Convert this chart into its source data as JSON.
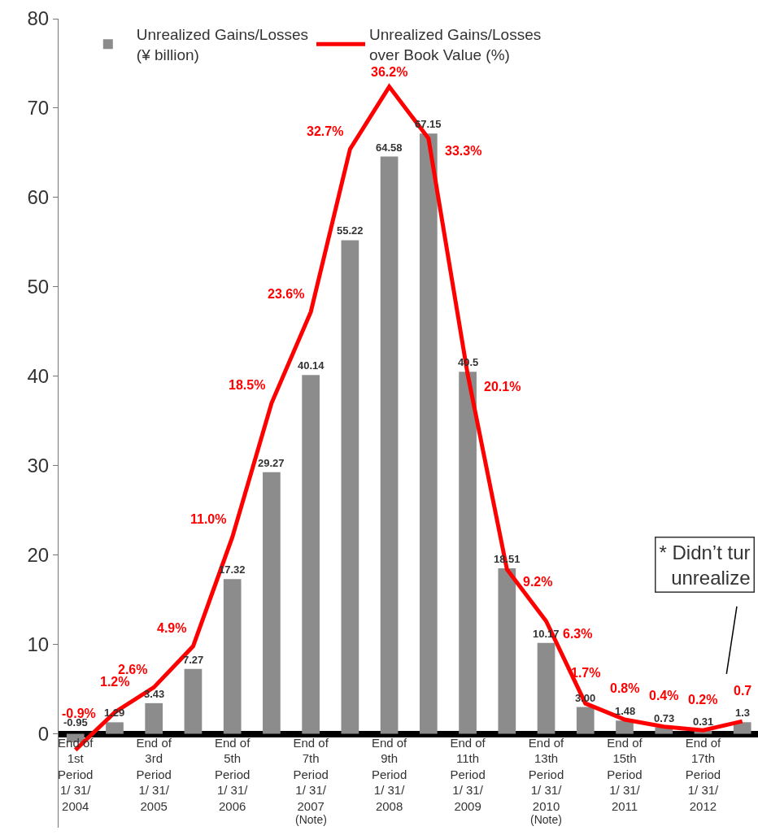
{
  "chart_data": {
    "type": "bar",
    "categories": [
      "End of\n1st\nPeriod\n1/ 31/\n2004",
      null,
      "End of\n3rd\nPeriod\n1/ 31/\n2005",
      null,
      "End of\n5th\nPeriod\n1/ 31/\n2006",
      null,
      "End of\n7th\nPeriod\n1/ 31/\n2007",
      null,
      "End of\n9th\nPeriod\n1/ 31/\n2008",
      null,
      "End of\n11th\nPeriod\n1/ 31/\n2009",
      null,
      "End of\n13th\nPeriod\n1/ 31/\n2010",
      null,
      "End of\n15th\nPeriod\n1/ 31/\n2011",
      null,
      "End of\n17th\nPeriod\n1/ 31/\n2012",
      null
    ],
    "series": [
      {
        "name": "Unrealized Gains/Losses\n(¥ billion)",
        "color": "#8c8c8c",
        "values": [
          -0.95,
          1.29,
          3.43,
          7.27,
          17.32,
          29.27,
          40.14,
          55.22,
          64.58,
          67.15,
          40.5,
          18.51,
          10.17,
          3.0,
          1.48,
          0.73,
          0.31,
          1.3
        ],
        "value_labels": [
          "-0.95",
          "1.29",
          "3.43",
          "7.27",
          "17.32",
          "29.27",
          "40.14",
          "55.22",
          "64.58",
          "67.15",
          "40.5",
          "18.51",
          "10.17",
          "3.00",
          "1.48",
          "0.73",
          "0.31",
          "1.3"
        ]
      },
      {
        "name": "Unrealized Gains/Losses\nover Book Value (%)",
        "type": "line",
        "axis": "y2",
        "color": "#ff0000",
        "values": [
          -0.9,
          1.2,
          2.6,
          4.9,
          11.0,
          18.5,
          23.6,
          32.7,
          36.2,
          33.3,
          20.1,
          9.2,
          6.3,
          1.7,
          0.8,
          0.4,
          0.2,
          0.7
        ],
        "value_labels": [
          "-0.9%",
          "1.2%",
          "2.6%",
          "4.9%",
          "11.0%",
          "18.5%",
          "23.6%",
          "32.7%",
          "36.2%",
          "33.3%",
          "20.1%",
          "9.2%",
          "6.3%",
          "1.7%",
          "0.8%",
          "0.4%",
          "0.2%",
          "0.7"
        ]
      }
    ],
    "ylim": [
      -10.5,
      80
    ],
    "yticks": [
      0,
      10,
      20,
      30,
      40,
      50,
      60,
      70,
      80
    ],
    "y2lim": [
      -5.25,
      40
    ],
    "grid": false,
    "legend": "top",
    "marker": "none",
    "line_style": "solid",
    "annotations": [
      "(Note)",
      "(Note)",
      "* Didn’t tur\nunrealize"
    ]
  }
}
